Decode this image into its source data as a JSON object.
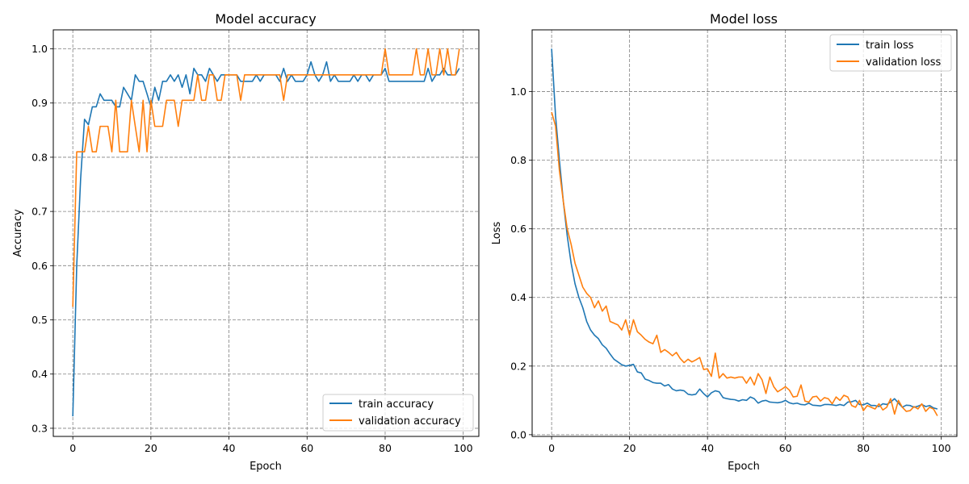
{
  "chart_data": [
    {
      "type": "line",
      "title": "Model accuracy",
      "xlabel": "Epoch",
      "ylabel": "Accuracy",
      "xlim": [
        -5,
        104
      ],
      "ylim": [
        0.285,
        1.035
      ],
      "xticks": [
        0,
        20,
        40,
        60,
        80,
        100
      ],
      "xtick_labels": [
        "0",
        "20",
        "40",
        "60",
        "80",
        "100"
      ],
      "yticks": [
        0.3,
        0.4,
        0.5,
        0.6,
        0.7,
        0.8,
        0.9,
        1.0
      ],
      "ytick_labels": [
        "0.3",
        "0.4",
        "0.5",
        "0.6",
        "0.7",
        "0.8",
        "0.9",
        "1.0"
      ],
      "grid": true,
      "legend_position": "lower-right",
      "series": [
        {
          "name": "train accuracy",
          "color": "#1f77b4",
          "values": [
            0.322,
            0.6,
            0.76,
            0.87,
            0.86,
            0.893,
            0.893,
            0.917,
            0.905,
            0.905,
            0.905,
            0.893,
            0.893,
            0.929,
            0.917,
            0.905,
            0.952,
            0.94,
            0.94,
            0.917,
            0.893,
            0.929,
            0.905,
            0.94,
            0.94,
            0.952,
            0.94,
            0.952,
            0.929,
            0.952,
            0.917,
            0.964,
            0.952,
            0.952,
            0.94,
            0.964,
            0.952,
            0.94,
            0.952,
            0.952,
            0.952,
            0.952,
            0.952,
            0.94,
            0.94,
            0.94,
            0.94,
            0.952,
            0.94,
            0.952,
            0.952,
            0.952,
            0.952,
            0.94,
            0.964,
            0.94,
            0.952,
            0.94,
            0.94,
            0.94,
            0.952,
            0.976,
            0.952,
            0.94,
            0.952,
            0.976,
            0.94,
            0.952,
            0.94,
            0.94,
            0.94,
            0.94,
            0.952,
            0.94,
            0.952,
            0.952,
            0.94,
            0.952,
            0.952,
            0.952,
            0.964,
            0.94,
            0.94,
            0.94,
            0.94,
            0.94,
            0.94,
            0.94,
            0.94,
            0.94,
            0.94,
            0.964,
            0.94,
            0.952,
            0.952,
            0.964,
            0.952,
            0.952,
            0.952,
            0.964
          ]
        },
        {
          "name": "validation accuracy",
          "color": "#ff7f0e",
          "values": [
            0.524,
            0.81,
            0.81,
            0.81,
            0.857,
            0.81,
            0.81,
            0.857,
            0.857,
            0.857,
            0.81,
            0.905,
            0.81,
            0.81,
            0.81,
            0.905,
            0.857,
            0.81,
            0.905,
            0.81,
            0.905,
            0.857,
            0.857,
            0.857,
            0.905,
            0.905,
            0.905,
            0.857,
            0.905,
            0.905,
            0.905,
            0.905,
            0.952,
            0.905,
            0.905,
            0.952,
            0.952,
            0.905,
            0.905,
            0.952,
            0.952,
            0.952,
            0.952,
            0.905,
            0.952,
            0.952,
            0.952,
            0.952,
            0.952,
            0.952,
            0.952,
            0.952,
            0.952,
            0.952,
            0.905,
            0.952,
            0.952,
            0.952,
            0.952,
            0.952,
            0.952,
            0.952,
            0.952,
            0.952,
            0.952,
            0.952,
            0.952,
            0.952,
            0.952,
            0.952,
            0.952,
            0.952,
            0.952,
            0.952,
            0.952,
            0.952,
            0.952,
            0.952,
            0.952,
            0.952,
            1.0,
            0.952,
            0.952,
            0.952,
            0.952,
            0.952,
            0.952,
            0.952,
            1.0,
            0.952,
            0.952,
            1.0,
            0.952,
            0.952,
            1.0,
            0.952,
            1.0,
            0.952,
            0.952,
            1.0
          ]
        }
      ]
    },
    {
      "type": "line",
      "title": "Model loss",
      "xlabel": "Epoch",
      "ylabel": "Loss",
      "xlim": [
        -5,
        104
      ],
      "ylim": [
        -0.005,
        1.18
      ],
      "xticks": [
        0,
        20,
        40,
        60,
        80,
        100
      ],
      "xtick_labels": [
        "0",
        "20",
        "40",
        "60",
        "80",
        "100"
      ],
      "yticks": [
        0.0,
        0.2,
        0.4,
        0.6,
        0.8,
        1.0
      ],
      "ytick_labels": [
        "0.0",
        "0.2",
        "0.4",
        "0.6",
        "0.8",
        "1.0"
      ],
      "grid": true,
      "legend_position": "upper-right",
      "series": [
        {
          "name": "train loss",
          "color": "#1f77b4",
          "values": [
            1.125,
            0.93,
            0.8,
            0.68,
            0.58,
            0.5,
            0.44,
            0.4,
            0.37,
            0.33,
            0.305,
            0.29,
            0.28,
            0.262,
            0.252,
            0.235,
            0.22,
            0.212,
            0.204,
            0.2,
            0.202,
            0.205,
            0.183,
            0.18,
            0.162,
            0.158,
            0.152,
            0.15,
            0.15,
            0.142,
            0.146,
            0.133,
            0.128,
            0.13,
            0.128,
            0.118,
            0.116,
            0.118,
            0.133,
            0.12,
            0.11,
            0.122,
            0.128,
            0.125,
            0.108,
            0.105,
            0.103,
            0.102,
            0.098,
            0.102,
            0.1,
            0.11,
            0.105,
            0.092,
            0.098,
            0.1,
            0.095,
            0.094,
            0.093,
            0.095,
            0.1,
            0.093,
            0.09,
            0.092,
            0.088,
            0.087,
            0.092,
            0.086,
            0.085,
            0.084,
            0.088,
            0.088,
            0.087,
            0.085,
            0.088,
            0.085,
            0.095,
            0.096,
            0.1,
            0.088,
            0.087,
            0.092,
            0.085,
            0.085,
            0.082,
            0.09,
            0.088,
            0.095,
            0.105,
            0.092,
            0.08,
            0.086,
            0.085,
            0.08,
            0.083,
            0.088,
            0.082,
            0.085,
            0.078,
            0.075
          ]
        },
        {
          "name": "validation loss",
          "color": "#ff7f0e",
          "values": [
            0.94,
            0.9,
            0.77,
            0.68,
            0.6,
            0.555,
            0.5,
            0.465,
            0.43,
            0.412,
            0.4,
            0.37,
            0.39,
            0.36,
            0.375,
            0.33,
            0.325,
            0.32,
            0.305,
            0.335,
            0.29,
            0.335,
            0.3,
            0.29,
            0.278,
            0.27,
            0.265,
            0.29,
            0.24,
            0.248,
            0.24,
            0.23,
            0.24,
            0.222,
            0.21,
            0.22,
            0.212,
            0.218,
            0.225,
            0.19,
            0.192,
            0.17,
            0.238,
            0.165,
            0.178,
            0.165,
            0.168,
            0.165,
            0.168,
            0.168,
            0.15,
            0.168,
            0.145,
            0.178,
            0.16,
            0.12,
            0.168,
            0.14,
            0.125,
            0.132,
            0.14,
            0.13,
            0.11,
            0.112,
            0.145,
            0.098,
            0.095,
            0.11,
            0.112,
            0.098,
            0.108,
            0.105,
            0.09,
            0.11,
            0.1,
            0.115,
            0.11,
            0.085,
            0.08,
            0.1,
            0.07,
            0.085,
            0.08,
            0.075,
            0.09,
            0.072,
            0.08,
            0.105,
            0.06,
            0.1,
            0.08,
            0.068,
            0.07,
            0.082,
            0.075,
            0.09,
            0.068,
            0.08,
            0.075,
            0.055
          ]
        }
      ]
    }
  ]
}
